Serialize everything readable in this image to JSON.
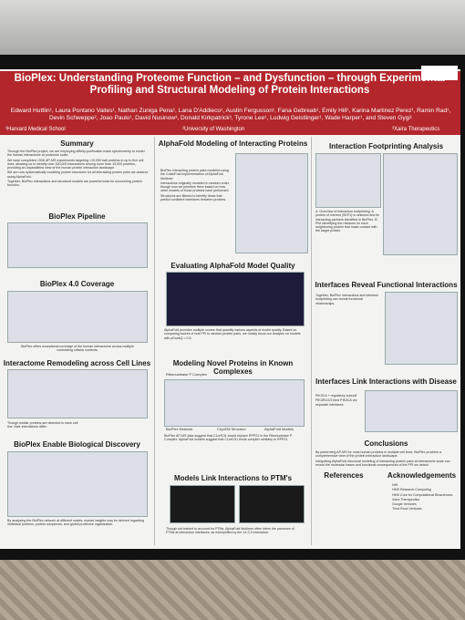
{
  "header": {
    "title": "BioPlex: Understanding Proteome Function – and Dysfunction – through Experimental Profiling and Structural Modeling of Protein Interactions",
    "authors": "Edward Huttlin¹, Laura Pontano Vaites¹, Nathan Zuniga Pena¹, Lana D'Addieco¹, Austin Fergusson¹, Fana Gebreab¹, Emily Hill¹, Karina Martinez Perez¹, Ramin Rad¹, Devin Schweppe², Joao Paulo¹, David Nusinow³, Donald Kirkpatrick³, Tyrone Lee¹, Ludwig Geistlinger¹, Wade Harper¹, and Steven Gygi¹",
    "affiliations": [
      "¹Harvard Medical School",
      "²University of Washington",
      "³Xaira Therapeutics"
    ]
  },
  "sections": [
    {
      "heading": "Summary",
      "paragraphs": [
        "Through the BioPlex project, we are employing affinity-purification mass spectrometry to model the human interactome at proteome scale.",
        "We have completed >30K AP-MS experiments targeting >10,000 bait proteins in up to five cell lines, allowing us to identify over 320,000 interactions among more than 15,000 proteins, providing an unparalleled view of the human protein interaction landscape.",
        "We are now systematically modeling protein structures for all interacting protein pairs we observe using AlphaFold.",
        "Together, BioPlex interactions and structural models are powerful tools for uncovering protein function."
      ]
    },
    {
      "heading": "BioPlex Pipeline"
    },
    {
      "heading": "BioPlex 4.0 Coverage",
      "paragraphs": [
        "BioPlex offers exceptional coverage of the human interactome across multiple contrasting cellular contexts."
      ]
    },
    {
      "heading": "Interactome Remodeling across Cell Lines",
      "paragraphs": [
        "Though similar proteins are detected in each cell line, their interactions differ."
      ]
    },
    {
      "heading": "BioPlex Enable Biological Discovery",
      "paragraphs": [
        "By analyzing the BioPlex network at different scales, myriad insights may be derived regarding individual proteins, protein complexes, and global proteome organization."
      ]
    },
    {
      "heading": "AlphaFold Modeling of Interacting Proteins",
      "paragraphs": [
        "BioPlex interacting protein pairs modeled using the ColabFold implementation of AlphaFold Multimer",
        "Interactions originally modeled in random order, though now we prioritize them based on how other models of those proteins have performed",
        "Structures are filtered to identify those that predict confident interfaces between proteins"
      ]
    },
    {
      "heading": "Evaluating AlphaFold Model Quality",
      "paragraphs": [
        "AlphaFold provides multiple scores that quantify various aspects of model quality. Based on comparing scores of real PPI to random protein pairs, we mostly focus our analysis on models with pDockQ > 0.5."
      ]
    },
    {
      "heading": "Modeling Novel Proteins in Known Complexes",
      "paragraphs": [
        "BioPlex AP-MS data suggest that C1orf131 would replace RPP21 in the Ribonuclease P Complex. AlphaFold models suggest that C1orf131 binds complex similarly to RPP21."
      ],
      "figure_labels": [
        "Ribonuclease P Complex",
        "BioPlex Network",
        "CryoEM Structure",
        "AlphaFold Models"
      ]
    },
    {
      "heading": "Models Link Interactions to PTM's",
      "paragraphs": [
        "Though not trained to account for PTMs, AlphaFold Multimer often infers the presence of PTMs at interaction interfaces, as exemplified by the 14-3-3 interaction."
      ]
    },
    {
      "heading": "Interaction Footprinting Analysis",
      "paragraphs": [
        "A. Overview of interaction footprinting. A protein of interest (SKP1) is selected and its interacting partners identified in BioPlex. B. Plot identifying the residues on each neighboring protein that make contact with the target protein."
      ]
    },
    {
      "heading": "Interfaces Reveal Functional Interactions",
      "paragraphs": [
        "Together, BioPlex interactions and interface footprinting can reveal functional relationships."
      ]
    },
    {
      "heading": "Interfaces Link Interactions with Disease",
      "paragraphs": [
        "PIK3CA + regulatory subunit",
        "PIK3R1/2/3 bind PIK3CA via separate interfaces"
      ]
    },
    {
      "heading": "Conclusions",
      "paragraphs": [
        "By performing AP-MS for most human proteins in multiple cell lines, BioPlex provides a comprehensive view of the protein interaction landscape.",
        "Integrating AlphaFold structural modeling of interacting protein pairs at interactome scale can reveal the molecular bases and functional consequences of the PPI we detect."
      ]
    },
    {
      "heading": "References"
    },
    {
      "heading": "Acknowledgements",
      "paragraphs": [
        "NIH",
        "HMS Research Computing",
        "HMS Core for Computational Biosciences",
        "Xaira Therapeutics",
        "Google Ventures",
        "Third Rock Ventures"
      ]
    }
  ]
}
